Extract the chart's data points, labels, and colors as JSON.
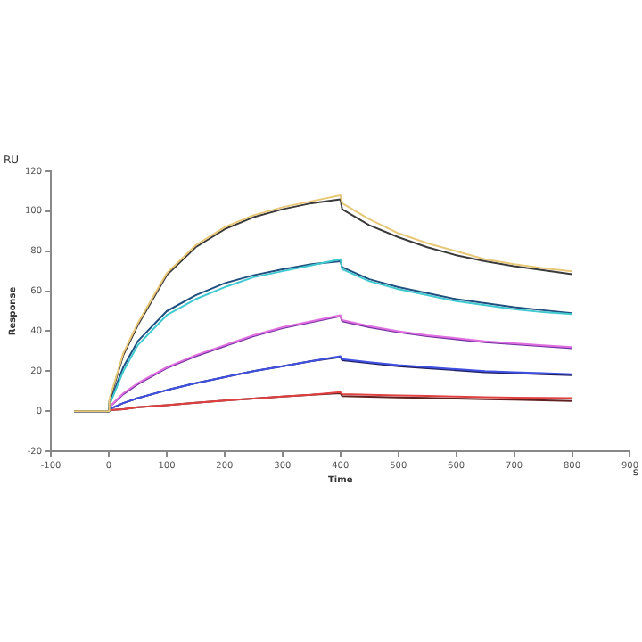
{
  "chart_data": {
    "type": "line",
    "xlabel": "Time",
    "ylabel": "Response",
    "annotations": [
      "RU",
      "s"
    ],
    "xlim": [
      -100,
      900
    ],
    "xticks": [
      -100,
      0,
      100,
      200,
      300,
      400,
      500,
      600,
      700,
      800,
      900
    ],
    "ylim": [
      -20,
      120
    ],
    "yticks": [
      -20,
      0,
      20,
      40,
      60,
      80,
      100,
      120
    ],
    "grid": false,
    "legend": false,
    "marker": "none",
    "line_style": "solid",
    "series": [
      {
        "color": "#e8c878",
        "x": [
          -60,
          0,
          1,
          25,
          50,
          100,
          150,
          200,
          250,
          300,
          350,
          400,
          403,
          450,
          500,
          550,
          600,
          650,
          700,
          750,
          800
        ],
        "values": [
          0,
          0,
          6,
          29,
          44,
          69,
          83,
          92,
          98,
          102,
          105,
          108,
          104,
          96,
          89,
          84,
          80,
          76,
          73.5,
          71.5,
          70
        ]
      },
      {
        "color": "#3a3a3a",
        "x": [
          -60,
          0,
          1,
          25,
          50,
          100,
          150,
          200,
          250,
          300,
          350,
          400,
          403,
          450,
          500,
          550,
          600,
          650,
          700,
          750,
          800
        ],
        "values": [
          0,
          0,
          5,
          28,
          43,
          68,
          82,
          91,
          97,
          101,
          104,
          106,
          101,
          93,
          87,
          82,
          78,
          75,
          72.5,
          70.5,
          68.5
        ]
      },
      {
        "color": "#40c8d0",
        "x": [
          -60,
          0,
          1,
          25,
          50,
          100,
          150,
          200,
          250,
          300,
          350,
          400,
          403,
          450,
          500,
          550,
          600,
          650,
          700,
          750,
          800
        ],
        "values": [
          0,
          0,
          3,
          20,
          33,
          48,
          56,
          62,
          67,
          70,
          73,
          76,
          71,
          65,
          61,
          58,
          55,
          53,
          51,
          49.5,
          48.5
        ]
      },
      {
        "color": "#1f4f7f",
        "x": [
          -60,
          0,
          1,
          25,
          50,
          100,
          150,
          200,
          250,
          300,
          350,
          400,
          403,
          450,
          500,
          550,
          600,
          650,
          700,
          750,
          800
        ],
        "values": [
          0,
          0,
          4,
          22,
          35,
          50,
          58,
          64,
          68,
          71,
          73.5,
          75,
          72,
          66,
          62,
          59,
          56,
          54,
          52,
          50.5,
          49
        ]
      },
      {
        "color": "#e070e0",
        "x": [
          -60,
          0,
          1,
          25,
          50,
          100,
          150,
          200,
          250,
          300,
          350,
          400,
          403,
          450,
          500,
          550,
          600,
          650,
          700,
          750,
          800
        ],
        "values": [
          0,
          0,
          2,
          9,
          14,
          22,
          28,
          33,
          38,
          42,
          45,
          48,
          45.5,
          42.5,
          40,
          38,
          36.5,
          35,
          34,
          33,
          32
        ]
      },
      {
        "color": "#7030a0",
        "x": [
          -60,
          0,
          1,
          25,
          50,
          100,
          150,
          200,
          250,
          300,
          350,
          400,
          403,
          450,
          500,
          550,
          600,
          650,
          700,
          750,
          800
        ],
        "values": [
          0,
          0,
          2,
          8.5,
          13.5,
          21.5,
          27.5,
          32.5,
          37.5,
          41.5,
          44.5,
          47.5,
          45,
          42,
          39.5,
          37.5,
          36,
          34.5,
          33.5,
          32.5,
          31.5
        ]
      },
      {
        "color": "#4050e0",
        "x": [
          -60,
          0,
          1,
          25,
          50,
          100,
          150,
          200,
          250,
          300,
          350,
          400,
          403,
          450,
          500,
          550,
          600,
          650,
          700,
          750,
          800
        ],
        "values": [
          0,
          0,
          1,
          4,
          6.5,
          10.5,
          14,
          17,
          20,
          22.5,
          25,
          27.5,
          26,
          24.5,
          23,
          22,
          21,
          20,
          19.5,
          19,
          18.5
        ]
      },
      {
        "color": "#202060",
        "x": [
          -60,
          0,
          1,
          25,
          50,
          100,
          150,
          200,
          250,
          300,
          350,
          400,
          403,
          450,
          500,
          550,
          600,
          650,
          700,
          750,
          800
        ],
        "values": [
          0,
          0,
          1,
          4,
          6.5,
          10.5,
          14,
          17,
          20,
          22.5,
          25,
          27,
          25.5,
          24,
          22.5,
          21.5,
          20.5,
          19.5,
          19,
          18.5,
          18
        ]
      },
      {
        "color": "#e04040",
        "x": [
          -60,
          0,
          1,
          25,
          50,
          100,
          150,
          200,
          250,
          300,
          350,
          400,
          403,
          450,
          500,
          550,
          600,
          650,
          700,
          750,
          800
        ],
        "values": [
          0,
          0,
          0.5,
          1,
          2,
          3,
          4.2,
          5.3,
          6.3,
          7.3,
          8.2,
          9.5,
          8.5,
          8.2,
          7.9,
          7.6,
          7.3,
          7,
          6.8,
          6.6,
          6.5
        ]
      },
      {
        "color": "#602020",
        "x": [
          -60,
          0,
          1,
          25,
          50,
          100,
          150,
          200,
          250,
          300,
          350,
          400,
          403,
          450,
          500,
          550,
          600,
          650,
          700,
          750,
          800
        ],
        "values": [
          0,
          0,
          0.5,
          1,
          2,
          3,
          4.2,
          5.3,
          6.3,
          7.3,
          8.2,
          9,
          7.5,
          7.2,
          6.9,
          6.6,
          6.3,
          6,
          5.7,
          5.4,
          5.1
        ]
      }
    ]
  }
}
